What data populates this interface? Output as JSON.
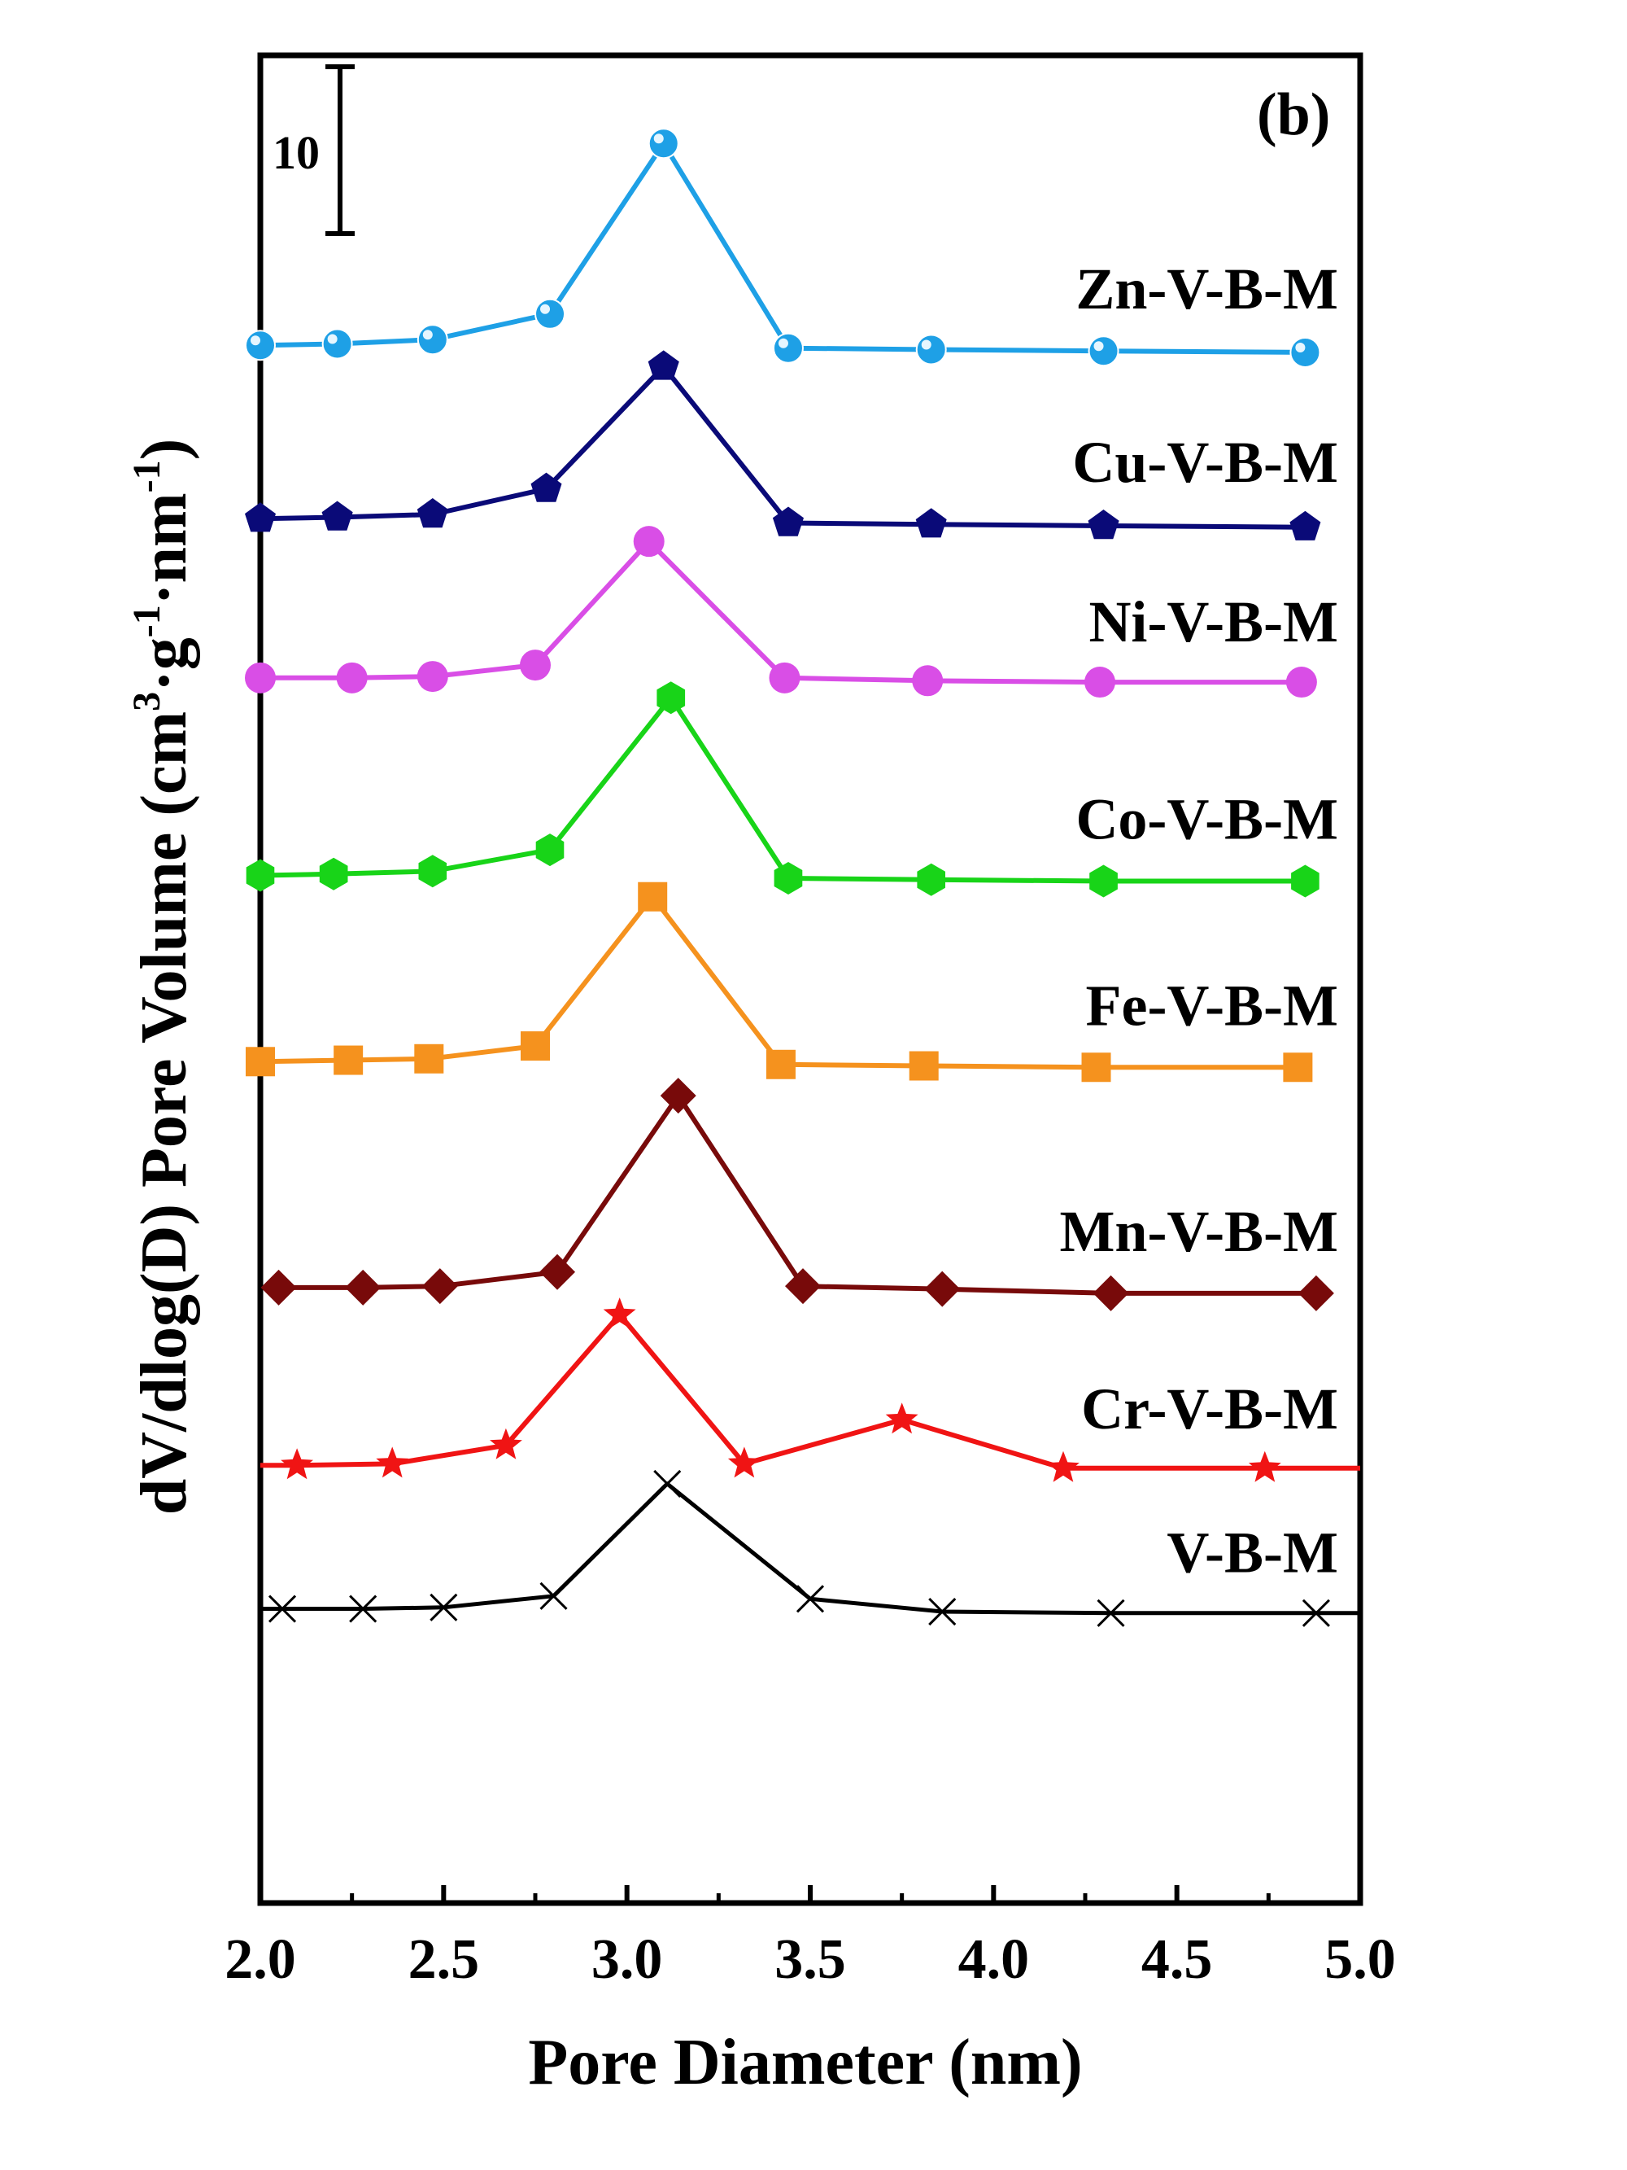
{
  "chart_data": {
    "type": "line",
    "panel_label": "(b)",
    "xlabel": "Pore Diameter (nm)",
    "ylabel": {
      "main": "dV/dlog(D) Pore Volume (cm",
      "sup1": "3",
      "mid1": "·g",
      "sup2": "-1",
      "mid2": "·nm",
      "sup3": "-1",
      "end": ")"
    },
    "xlim": [
      2.0,
      5.0
    ],
    "xticks": [
      "2.0",
      "2.5",
      "3.0",
      "3.5",
      "4.0",
      "4.5",
      "5.0"
    ],
    "yticks_shown": false,
    "scale_bar": {
      "label": "10",
      "value": 10
    },
    "series": [
      {
        "name": "Zn-V-B-M",
        "color": "#1ea0e6",
        "marker": "sphere",
        "x": [
          2.0,
          2.21,
          2.47,
          2.79,
          3.1,
          3.44,
          3.83,
          4.3,
          4.85
        ],
        "y": [
          109.6,
          109.7,
          110.0,
          111.8,
          123.8,
          109.4,
          109.3,
          109.2,
          109.1
        ]
      },
      {
        "name": "Cu-V-B-M",
        "color": "#0a0a78",
        "marker": "pentagon",
        "x": [
          2.0,
          2.21,
          2.47,
          2.78,
          3.1,
          3.44,
          3.83,
          4.3,
          4.85
        ],
        "y": [
          97.4,
          97.5,
          97.7,
          99.5,
          108.1,
          97.1,
          97.0,
          96.9,
          96.8
        ]
      },
      {
        "name": "Ni-V-B-M",
        "color": "#d94ee6",
        "marker": "circle",
        "x": [
          2.0,
          2.25,
          2.47,
          2.75,
          3.06,
          3.43,
          3.82,
          4.29,
          4.84
        ],
        "y": [
          86.2,
          86.2,
          86.3,
          87.1,
          95.8,
          86.2,
          86.0,
          85.9,
          85.9
        ]
      },
      {
        "name": "Co-V-B-M",
        "color": "#18d418",
        "marker": "hexagon",
        "x": [
          2.0,
          2.2,
          2.47,
          2.79,
          3.12,
          3.44,
          3.83,
          4.3,
          4.85
        ],
        "y": [
          72.3,
          72.4,
          72.6,
          74.1,
          84.8,
          72.1,
          72.0,
          71.9,
          71.9
        ]
      },
      {
        "name": "Fe-V-B-M",
        "color": "#f5921e",
        "marker": "square",
        "x": [
          2.0,
          2.24,
          2.46,
          2.75,
          3.07,
          3.42,
          3.81,
          4.28,
          4.83
        ],
        "y": [
          59.2,
          59.3,
          59.4,
          60.3,
          70.8,
          59.0,
          58.9,
          58.8,
          58.8
        ]
      },
      {
        "name": "Mn-V-B-M",
        "color": "#780a0a",
        "marker": "diamond",
        "x": [
          2.05,
          2.28,
          2.49,
          2.81,
          3.14,
          3.48,
          3.86,
          4.32,
          4.88
        ],
        "y": [
          43.3,
          43.3,
          43.4,
          44.4,
          56.8,
          43.4,
          43.2,
          42.9,
          42.9
        ]
      },
      {
        "name": "Cr-V-B-M",
        "color": "#f01414",
        "marker": "star",
        "x": [
          2.0,
          2.1,
          2.36,
          2.67,
          2.98,
          3.32,
          3.75,
          4.19,
          4.74,
          5.0
        ],
        "y": [
          30.8,
          30.8,
          30.9,
          32.2,
          41.4,
          30.9,
          34.0,
          30.6,
          30.6,
          30.6
        ]
      },
      {
        "name": "V-B-M",
        "color": "#000000",
        "marker": "x",
        "x": [
          2.0,
          2.06,
          2.28,
          2.5,
          2.8,
          3.11,
          3.5,
          3.86,
          4.32,
          4.88,
          5.0
        ],
        "y": [
          20.7,
          20.7,
          20.7,
          20.8,
          21.6,
          29.5,
          21.4,
          20.5,
          20.4,
          20.4,
          20.4
        ]
      }
    ]
  }
}
